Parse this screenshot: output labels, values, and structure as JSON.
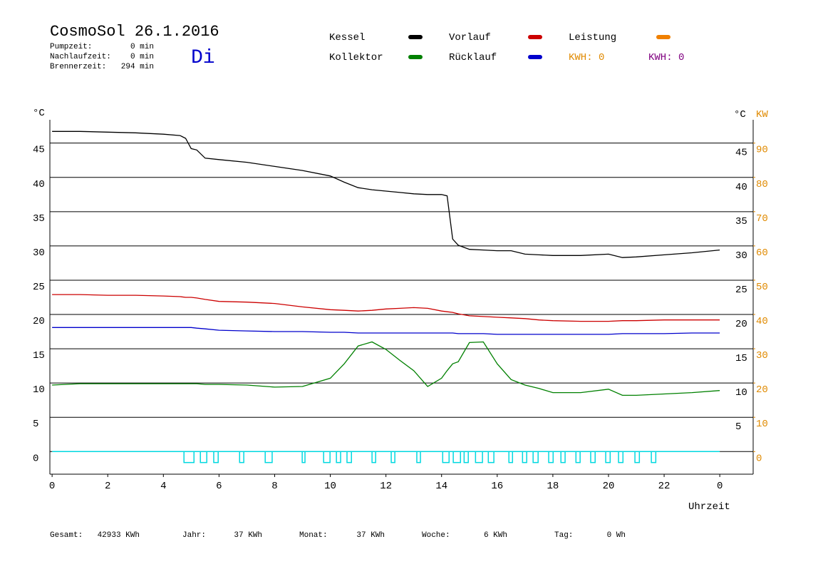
{
  "chart_data": {
    "type": "line",
    "title": "CosmoSol 26.1.2016",
    "stats": [
      [
        "Pumpzeit:",
        "0 min"
      ],
      [
        "Nachlaufzeit:",
        "0 min"
      ],
      [
        "Brennerzeit:",
        "294 min"
      ]
    ],
    "weekday": "Di",
    "kwh_labels": [
      {
        "text": "KWH: 0",
        "color": "#e08a00"
      },
      {
        "text": "KWH: 0",
        "color": "#800080"
      }
    ],
    "totals": [
      [
        "Gesamt:",
        "42933 KWh"
      ],
      [
        "Jahr:",
        "37 KWh"
      ],
      [
        "Monat:",
        "37 KWh"
      ],
      [
        "Woche:",
        "6 KWh"
      ],
      [
        "Tag:",
        "0 Wh"
      ]
    ],
    "ylabel": "°C",
    "y2label": "KW",
    "xlabel": "Uhrzeit",
    "xlim": [
      -0.08,
      25.2
    ],
    "xticks": [
      0,
      2,
      4,
      6,
      8,
      10,
      12,
      14,
      16,
      18,
      20,
      22,
      {
        "value": 24,
        "label": "0"
      }
    ],
    "ylim": [
      -3.3,
      48.4
    ],
    "yticks": [
      0,
      5,
      10,
      15,
      20,
      25,
      30,
      35,
      40,
      45
    ],
    "y2lim": [
      -6.6,
      96.8
    ],
    "y2ticks": [
      0,
      10,
      20,
      30,
      40,
      50,
      60,
      70,
      80,
      90
    ],
    "grid": true,
    "x": [
      0,
      1,
      2,
      3,
      4,
      4.6,
      4.8,
      5,
      5.2,
      5.5,
      6,
      7,
      8,
      9,
      10,
      10.5,
      11,
      11.5,
      12,
      12.5,
      13,
      13.5,
      14,
      14.2,
      14.4,
      14.6,
      15,
      15.5,
      16,
      16.5,
      17,
      17.5,
      18,
      19,
      20,
      20.5,
      21,
      22,
      23,
      24
    ],
    "series": [
      {
        "name": "Kessel",
        "color": "#000000",
        "values": [
          46.7,
          46.7,
          46.6,
          46.5,
          46.3,
          46.1,
          45.7,
          44.2,
          44.0,
          42.8,
          42.6,
          42.2,
          41.6,
          41.0,
          40.2,
          39.3,
          38.5,
          38.2,
          38.0,
          37.8,
          37.6,
          37.5,
          37.5,
          37.3,
          31.0,
          30.1,
          29.5,
          29.4,
          29.3,
          29.3,
          28.8,
          28.7,
          28.6,
          28.6,
          28.8,
          28.3,
          28.4,
          28.7,
          29.0,
          29.4
        ]
      },
      {
        "name": "Kollektor",
        "color": "#008000",
        "values": [
          9.7,
          9.9,
          9.9,
          9.9,
          9.9,
          9.9,
          9.9,
          9.9,
          9.9,
          9.8,
          9.8,
          9.7,
          9.4,
          9.5,
          10.7,
          12.8,
          15.4,
          16.0,
          14.9,
          13.3,
          11.8,
          9.5,
          10.7,
          11.8,
          12.8,
          13.1,
          15.9,
          16.0,
          12.8,
          10.5,
          9.7,
          9.2,
          8.6,
          8.6,
          9.1,
          8.2,
          8.2,
          8.4,
          8.6,
          8.9
        ]
      },
      {
        "name": "Vorlauf",
        "color": "#cc0000",
        "values": [
          22.9,
          22.9,
          22.8,
          22.8,
          22.7,
          22.6,
          22.5,
          22.5,
          22.4,
          22.2,
          21.9,
          21.8,
          21.6,
          21.1,
          20.7,
          20.6,
          20.5,
          20.6,
          20.8,
          20.9,
          21.0,
          20.9,
          20.5,
          20.4,
          20.3,
          20.1,
          19.8,
          19.7,
          19.6,
          19.5,
          19.4,
          19.2,
          19.1,
          19.0,
          19.0,
          19.1,
          19.1,
          19.2,
          19.2,
          19.2
        ]
      },
      {
        "name": "Rücklauf",
        "color": "#0000cc",
        "values": [
          18.1,
          18.1,
          18.1,
          18.1,
          18.1,
          18.1,
          18.1,
          18.1,
          18.0,
          17.9,
          17.7,
          17.6,
          17.5,
          17.5,
          17.4,
          17.4,
          17.3,
          17.3,
          17.3,
          17.3,
          17.3,
          17.3,
          17.3,
          17.3,
          17.3,
          17.2,
          17.2,
          17.2,
          17.1,
          17.1,
          17.1,
          17.1,
          17.1,
          17.1,
          17.1,
          17.2,
          17.2,
          17.2,
          17.3,
          17.3
        ]
      },
      {
        "name": "Leistung",
        "color": "#f08000",
        "axis": "y2",
        "values": [
          0,
          0,
          0,
          0,
          0,
          0,
          0,
          0,
          0,
          0,
          0,
          0,
          0,
          0,
          0,
          0,
          0,
          0,
          0,
          0,
          0,
          0,
          0,
          0,
          0,
          0,
          0,
          0,
          0,
          0,
          0,
          0,
          0,
          0,
          0,
          0,
          0,
          0,
          0,
          0
        ]
      }
    ],
    "pulses": {
      "color": "#00d8e0",
      "low": -1.6,
      "intervals": [
        [
          4.74,
          5.1
        ],
        [
          5.33,
          5.56
        ],
        [
          5.81,
          5.97
        ],
        [
          6.74,
          6.89
        ],
        [
          7.66,
          7.91
        ],
        [
          8.99,
          9.09
        ],
        [
          9.76,
          9.99
        ],
        [
          10.22,
          10.37
        ],
        [
          10.6,
          10.76
        ],
        [
          11.5,
          11.63
        ],
        [
          12.19,
          12.32
        ],
        [
          13.11,
          13.24
        ],
        [
          14.04,
          14.27
        ],
        [
          14.42,
          14.68
        ],
        [
          14.81,
          14.96
        ],
        [
          15.22,
          15.47
        ],
        [
          15.68,
          15.88
        ],
        [
          16.42,
          16.55
        ],
        [
          16.91,
          17.06
        ],
        [
          17.29,
          17.47
        ],
        [
          17.85,
          18.01
        ],
        [
          18.29,
          18.44
        ],
        [
          18.83,
          18.98
        ],
        [
          19.36,
          19.52
        ],
        [
          19.9,
          20.06
        ],
        [
          20.36,
          20.52
        ],
        [
          20.95,
          21.11
        ],
        [
          21.54,
          21.7
        ]
      ]
    }
  }
}
